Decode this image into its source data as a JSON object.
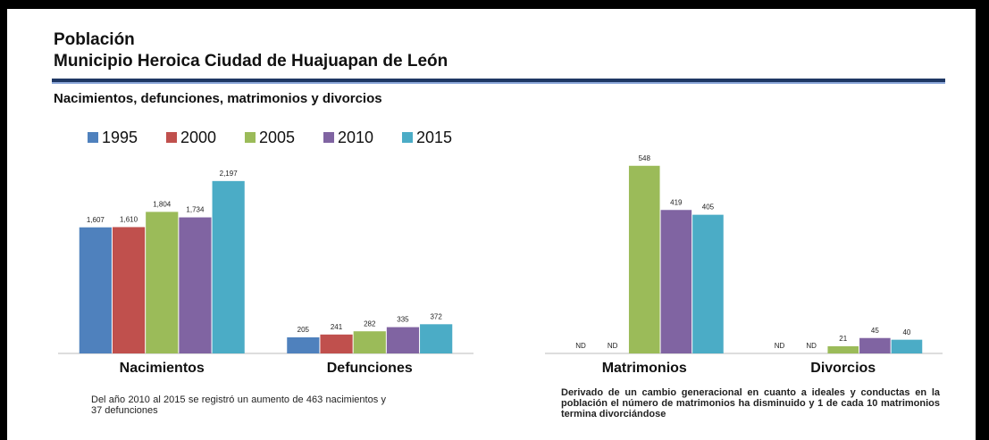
{
  "header": {
    "title": "Población",
    "subtitle": "Municipio Heroica Ciudad de Huajuapan de León",
    "section": "Nacimientos, defunciones, matrimonios y divorcios"
  },
  "chart_data": [
    {
      "type": "bar",
      "categories": [
        "Nacimientos",
        "Defunciones"
      ],
      "ylim": [
        0,
        2400
      ],
      "series": [
        {
          "name": "1995",
          "color": "#4f81bd",
          "values": [
            1607,
            205
          ],
          "value_labels": [
            "1,607",
            "205"
          ]
        },
        {
          "name": "2000",
          "color": "#c0504d",
          "values": [
            1610,
            241
          ],
          "value_labels": [
            "1,610",
            "241"
          ]
        },
        {
          "name": "2005",
          "color": "#9bbb59",
          "values": [
            1804,
            282
          ],
          "value_labels": [
            "1,804",
            "282"
          ]
        },
        {
          "name": "2010",
          "color": "#8064a2",
          "values": [
            1734,
            335
          ],
          "value_labels": [
            "1,734",
            "335"
          ]
        },
        {
          "name": "2015",
          "color": "#4bacc6",
          "values": [
            2197,
            372
          ],
          "value_labels": [
            "2,197",
            "372"
          ]
        }
      ],
      "note": "Del año 2010 al 2015 se registró un aumento de 463 nacimientos y 37 defunciones"
    },
    {
      "type": "bar",
      "categories": [
        "Matrimonios",
        "Divorcios"
      ],
      "ylim": [
        0,
        550
      ],
      "series": [
        {
          "color": "#4f81bd",
          "values": [
            null,
            null
          ],
          "value_labels": [
            "ND",
            "ND"
          ]
        },
        {
          "color": "#c0504d",
          "values": [
            null,
            null
          ],
          "value_labels": [
            "ND",
            "ND"
          ]
        },
        {
          "color": "#9bbb59",
          "values": [
            548,
            21
          ],
          "value_labels": [
            "548",
            "21"
          ]
        },
        {
          "color": "#8064a2",
          "values": [
            419,
            45
          ],
          "value_labels": [
            "419",
            "45"
          ]
        },
        {
          "color": "#4bacc6",
          "values": [
            405,
            40
          ],
          "value_labels": [
            "405",
            "40"
          ]
        }
      ],
      "note": "Derivado de un cambio generacional en cuanto a ideales y conductas en la población el número de matrimonios ha disminuido y 1 de cada 10 matrimonios termina divorciándose"
    }
  ]
}
